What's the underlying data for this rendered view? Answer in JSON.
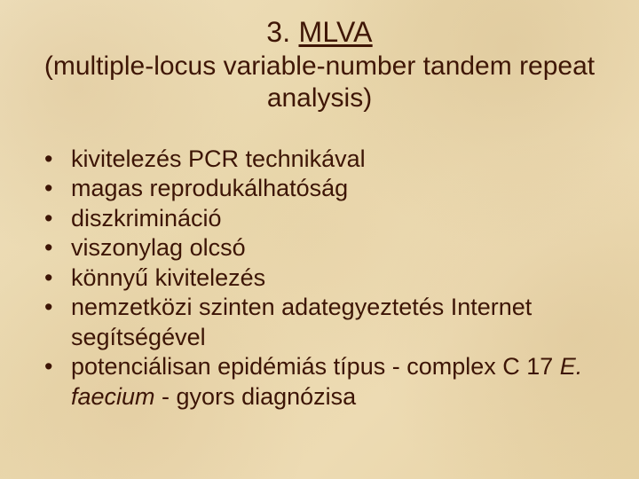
{
  "colors": {
    "text": "#3f1606",
    "background_base": "#e9d7ac"
  },
  "typography": {
    "title_fontsize_pt": 24,
    "subtitle_fontsize_pt": 22,
    "body_fontsize_pt": 20,
    "font_family": "Arial"
  },
  "title": {
    "number": "3.",
    "acronym": "MLVA",
    "expansion": "(multiple-locus variable-number tandem repeat analysis)"
  },
  "bullets": [
    {
      "text": "kivitelezés PCR technikával"
    },
    {
      "text": "magas reprodukálhatóság"
    },
    {
      "text": "diszkrimináció"
    },
    {
      "text": "viszonylag olcsó"
    },
    {
      "text": "könnyű kivitelezés"
    },
    {
      "text": "nemzetközi szinten adategyeztetés Internet segítségével"
    },
    {
      "pre": "potenciálisan epidémiás típus - complex C 17 ",
      "italic": "E. faecium",
      "post": " - gyors diagnózisa"
    }
  ]
}
